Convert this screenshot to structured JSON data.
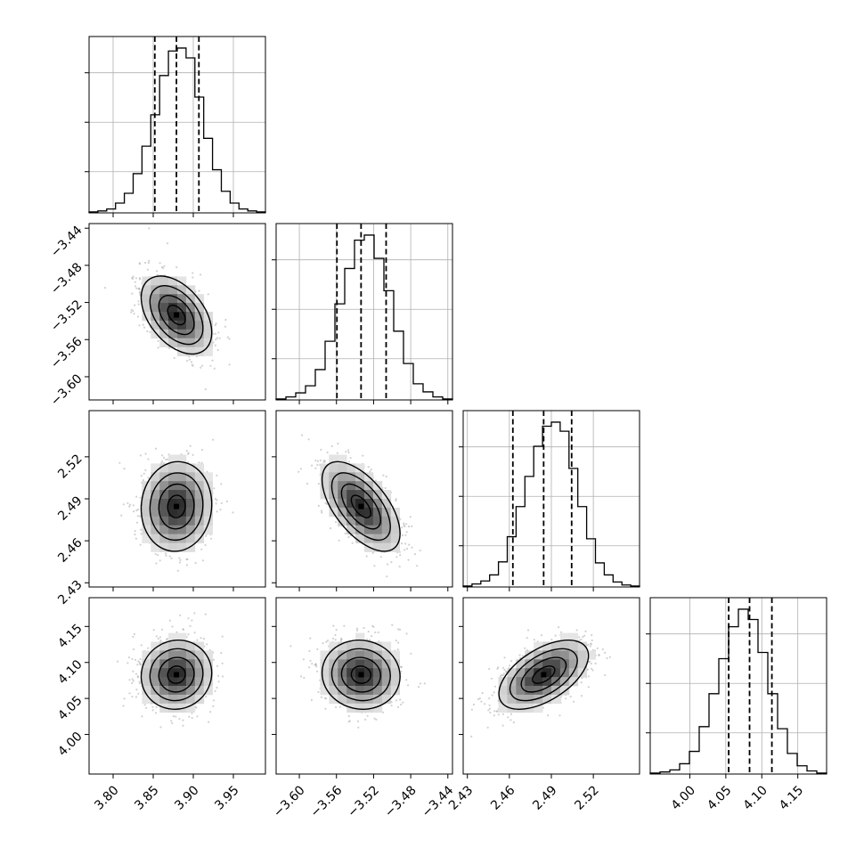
{
  "chart_data": {
    "type": "corner",
    "parameters": [
      {
        "range": [
          3.77,
          3.99
        ],
        "ticks": [
          3.8,
          3.85,
          3.9,
          3.95
        ],
        "tick_labels": [
          "3.80",
          "3.85",
          "3.90",
          "3.95"
        ],
        "quantiles": [
          3.852,
          3.879,
          3.907
        ],
        "hist_values": [
          1,
          2,
          4,
          10,
          20,
          40,
          68,
          100,
          140,
          165,
          168,
          158,
          118,
          76,
          44,
          22,
          10,
          4,
          2,
          1
        ]
      },
      {
        "range": [
          -3.625,
          -3.435
        ],
        "ticks": [
          -3.6,
          -3.56,
          -3.52,
          -3.48,
          -3.44
        ],
        "tick_labels": [
          "−3.60",
          "−3.56",
          "−3.52",
          "−3.48",
          "−3.44"
        ],
        "quantiles": [
          -3.5595,
          -3.5335,
          -3.5065
        ],
        "hist_values": [
          1,
          3,
          7,
          14,
          30,
          58,
          95,
          130,
          158,
          163,
          140,
          108,
          68,
          36,
          16,
          8,
          3,
          1
        ]
      },
      {
        "range": [
          2.427,
          2.553
        ],
        "ticks": [
          2.43,
          2.46,
          2.49,
          2.52
        ],
        "tick_labels": [
          "2.43",
          "2.46",
          "2.49",
          "2.52"
        ],
        "quantiles": [
          2.4625,
          2.4845,
          2.5045
        ],
        "hist_values": [
          1,
          3,
          6,
          12,
          25,
          50,
          80,
          110,
          140,
          160,
          164,
          155,
          118,
          80,
          48,
          24,
          12,
          5,
          2,
          1
        ]
      },
      {
        "range": [
          3.945,
          4.19
        ],
        "ticks": [
          4.0,
          4.05,
          4.1,
          4.15
        ],
        "tick_labels": [
          "4.00",
          "4.05",
          "4.10",
          "4.15"
        ],
        "quantiles": [
          4.054,
          4.083,
          4.114
        ],
        "hist_values": [
          1,
          2,
          4,
          10,
          22,
          46,
          78,
          112,
          143,
          160,
          150,
          118,
          78,
          44,
          20,
          8,
          3,
          1
        ]
      }
    ],
    "pairs": [
      {
        "x": 0,
        "y": 1,
        "mean": [
          3.879,
          -3.5335
        ],
        "sd": [
          0.022,
          0.021
        ],
        "rho": -0.45
      },
      {
        "x": 0,
        "y": 2,
        "mean": [
          3.879,
          2.4845
        ],
        "sd": [
          0.022,
          0.016
        ],
        "rho": 0.05
      },
      {
        "x": 1,
        "y": 2,
        "mean": [
          -3.5335,
          2.4845
        ],
        "sd": [
          0.021,
          0.016
        ],
        "rho": -0.6
      },
      {
        "x": 0,
        "y": 3,
        "mean": [
          3.879,
          4.083
        ],
        "sd": [
          0.022,
          0.024
        ],
        "rho": 0.05
      },
      {
        "x": 1,
        "y": 3,
        "mean": [
          -3.5335,
          4.083
        ],
        "sd": [
          0.021,
          0.024
        ],
        "rho": -0.05
      },
      {
        "x": 2,
        "y": 3,
        "mean": [
          2.4845,
          4.083
        ],
        "sd": [
          0.016,
          0.024
        ],
        "rho": 0.55
      }
    ],
    "contour_levels": [
      0.5,
      1.0,
      1.5,
      2.0
    ],
    "grid": true,
    "line_color": "#000000",
    "grid_color": "#b0b0b0",
    "point_color": "#9a9a9a"
  }
}
